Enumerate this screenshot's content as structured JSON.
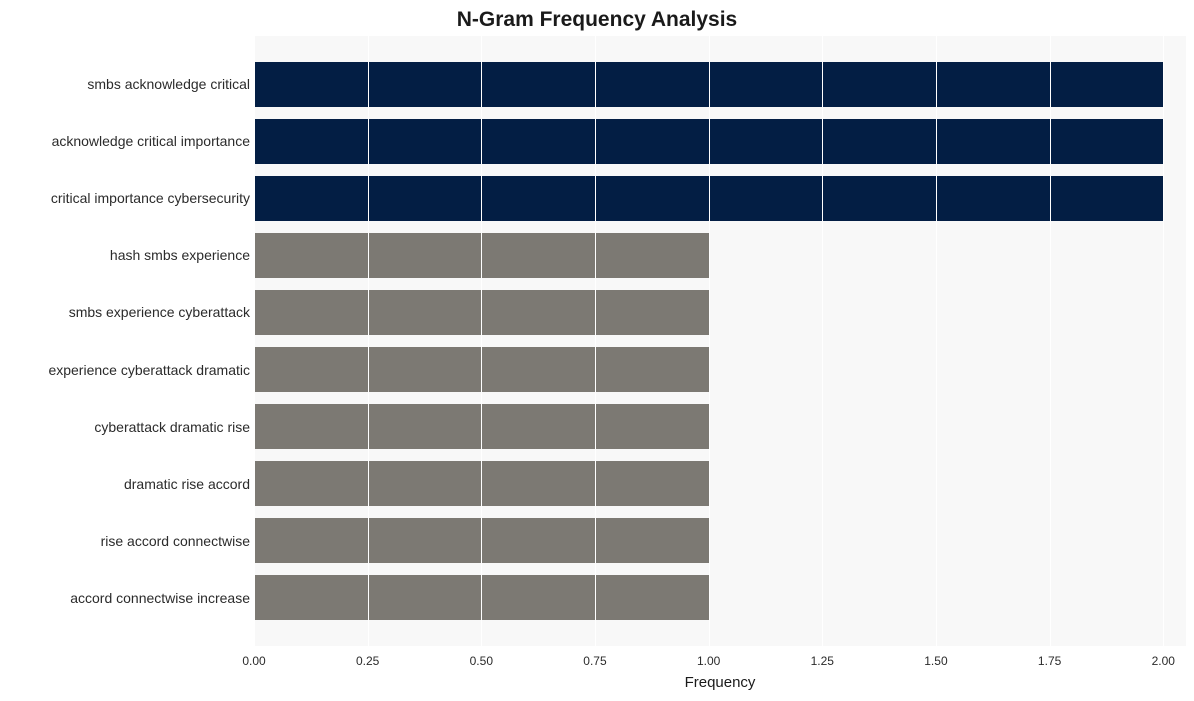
{
  "chart": {
    "type": "bar-horizontal",
    "title": "N-Gram Frequency Analysis",
    "title_fontsize": 21,
    "xlabel": "Frequency",
    "xlabel_fontsize": 15,
    "background_color": "#ffffff",
    "plot_background_color": "#f8f8f8",
    "grid_color": "#ffffff",
    "xlim": [
      0.0,
      2.05
    ],
    "xtick_step": 0.25,
    "xtick_labels": [
      "0.00",
      "0.25",
      "0.50",
      "0.75",
      "1.00",
      "1.25",
      "1.50",
      "1.75",
      "2.00"
    ],
    "bar_height_ratio": 0.78,
    "categories": [
      "smbs acknowledge critical",
      "acknowledge critical importance",
      "critical importance cybersecurity",
      "hash smbs experience",
      "smbs experience cyberattack",
      "experience cyberattack dramatic",
      "cyberattack dramatic rise",
      "dramatic rise accord",
      "rise accord connectwise",
      "accord connectwise increase"
    ],
    "values": [
      2,
      2,
      2,
      1,
      1,
      1,
      1,
      1,
      1,
      1
    ],
    "bar_colors": [
      "#031e44",
      "#031e44",
      "#031e44",
      "#7c7973",
      "#7c7973",
      "#7c7973",
      "#7c7973",
      "#7c7973",
      "#7c7973",
      "#7c7973"
    ],
    "ylabel_fontsize": 14,
    "xtick_fontsize": 12,
    "text_color": "#2b2b2b"
  }
}
